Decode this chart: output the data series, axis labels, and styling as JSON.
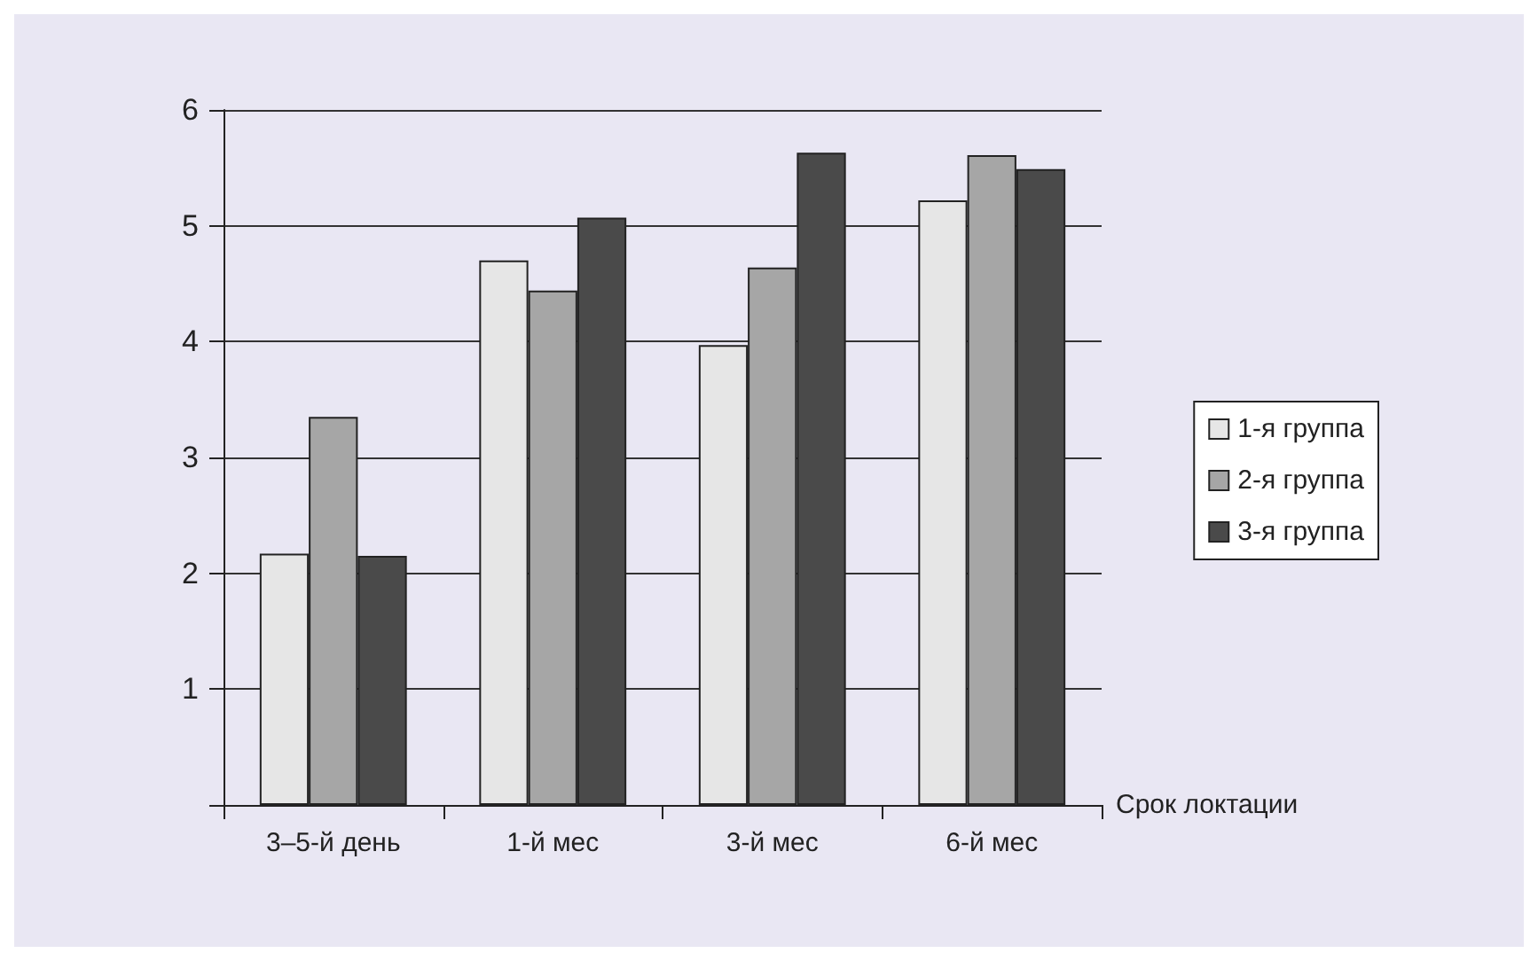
{
  "chart_data": {
    "type": "bar",
    "xlabel": "Срок локтации",
    "categories": [
      "3–5-й день",
      "1-й мес",
      "3-й мес",
      "6-й мес"
    ],
    "series": [
      {
        "name": "1-я группа",
        "color": "#e6e6e6",
        "values": [
          2.17,
          4.7,
          3.97,
          5.22
        ]
      },
      {
        "name": "2-я группа",
        "color": "#a6a6a6",
        "values": [
          3.35,
          4.44,
          4.64,
          5.61
        ]
      },
      {
        "name": "3-я группа",
        "color": "#4a4a4a",
        "values": [
          2.15,
          5.07,
          5.63,
          5.49
        ]
      }
    ],
    "ylim": [
      0,
      6
    ],
    "yticks": [
      {
        "value": 0,
        "label": null
      },
      1,
      2,
      3,
      4,
      5,
      6
    ],
    "grid": "y",
    "legend": "right"
  }
}
